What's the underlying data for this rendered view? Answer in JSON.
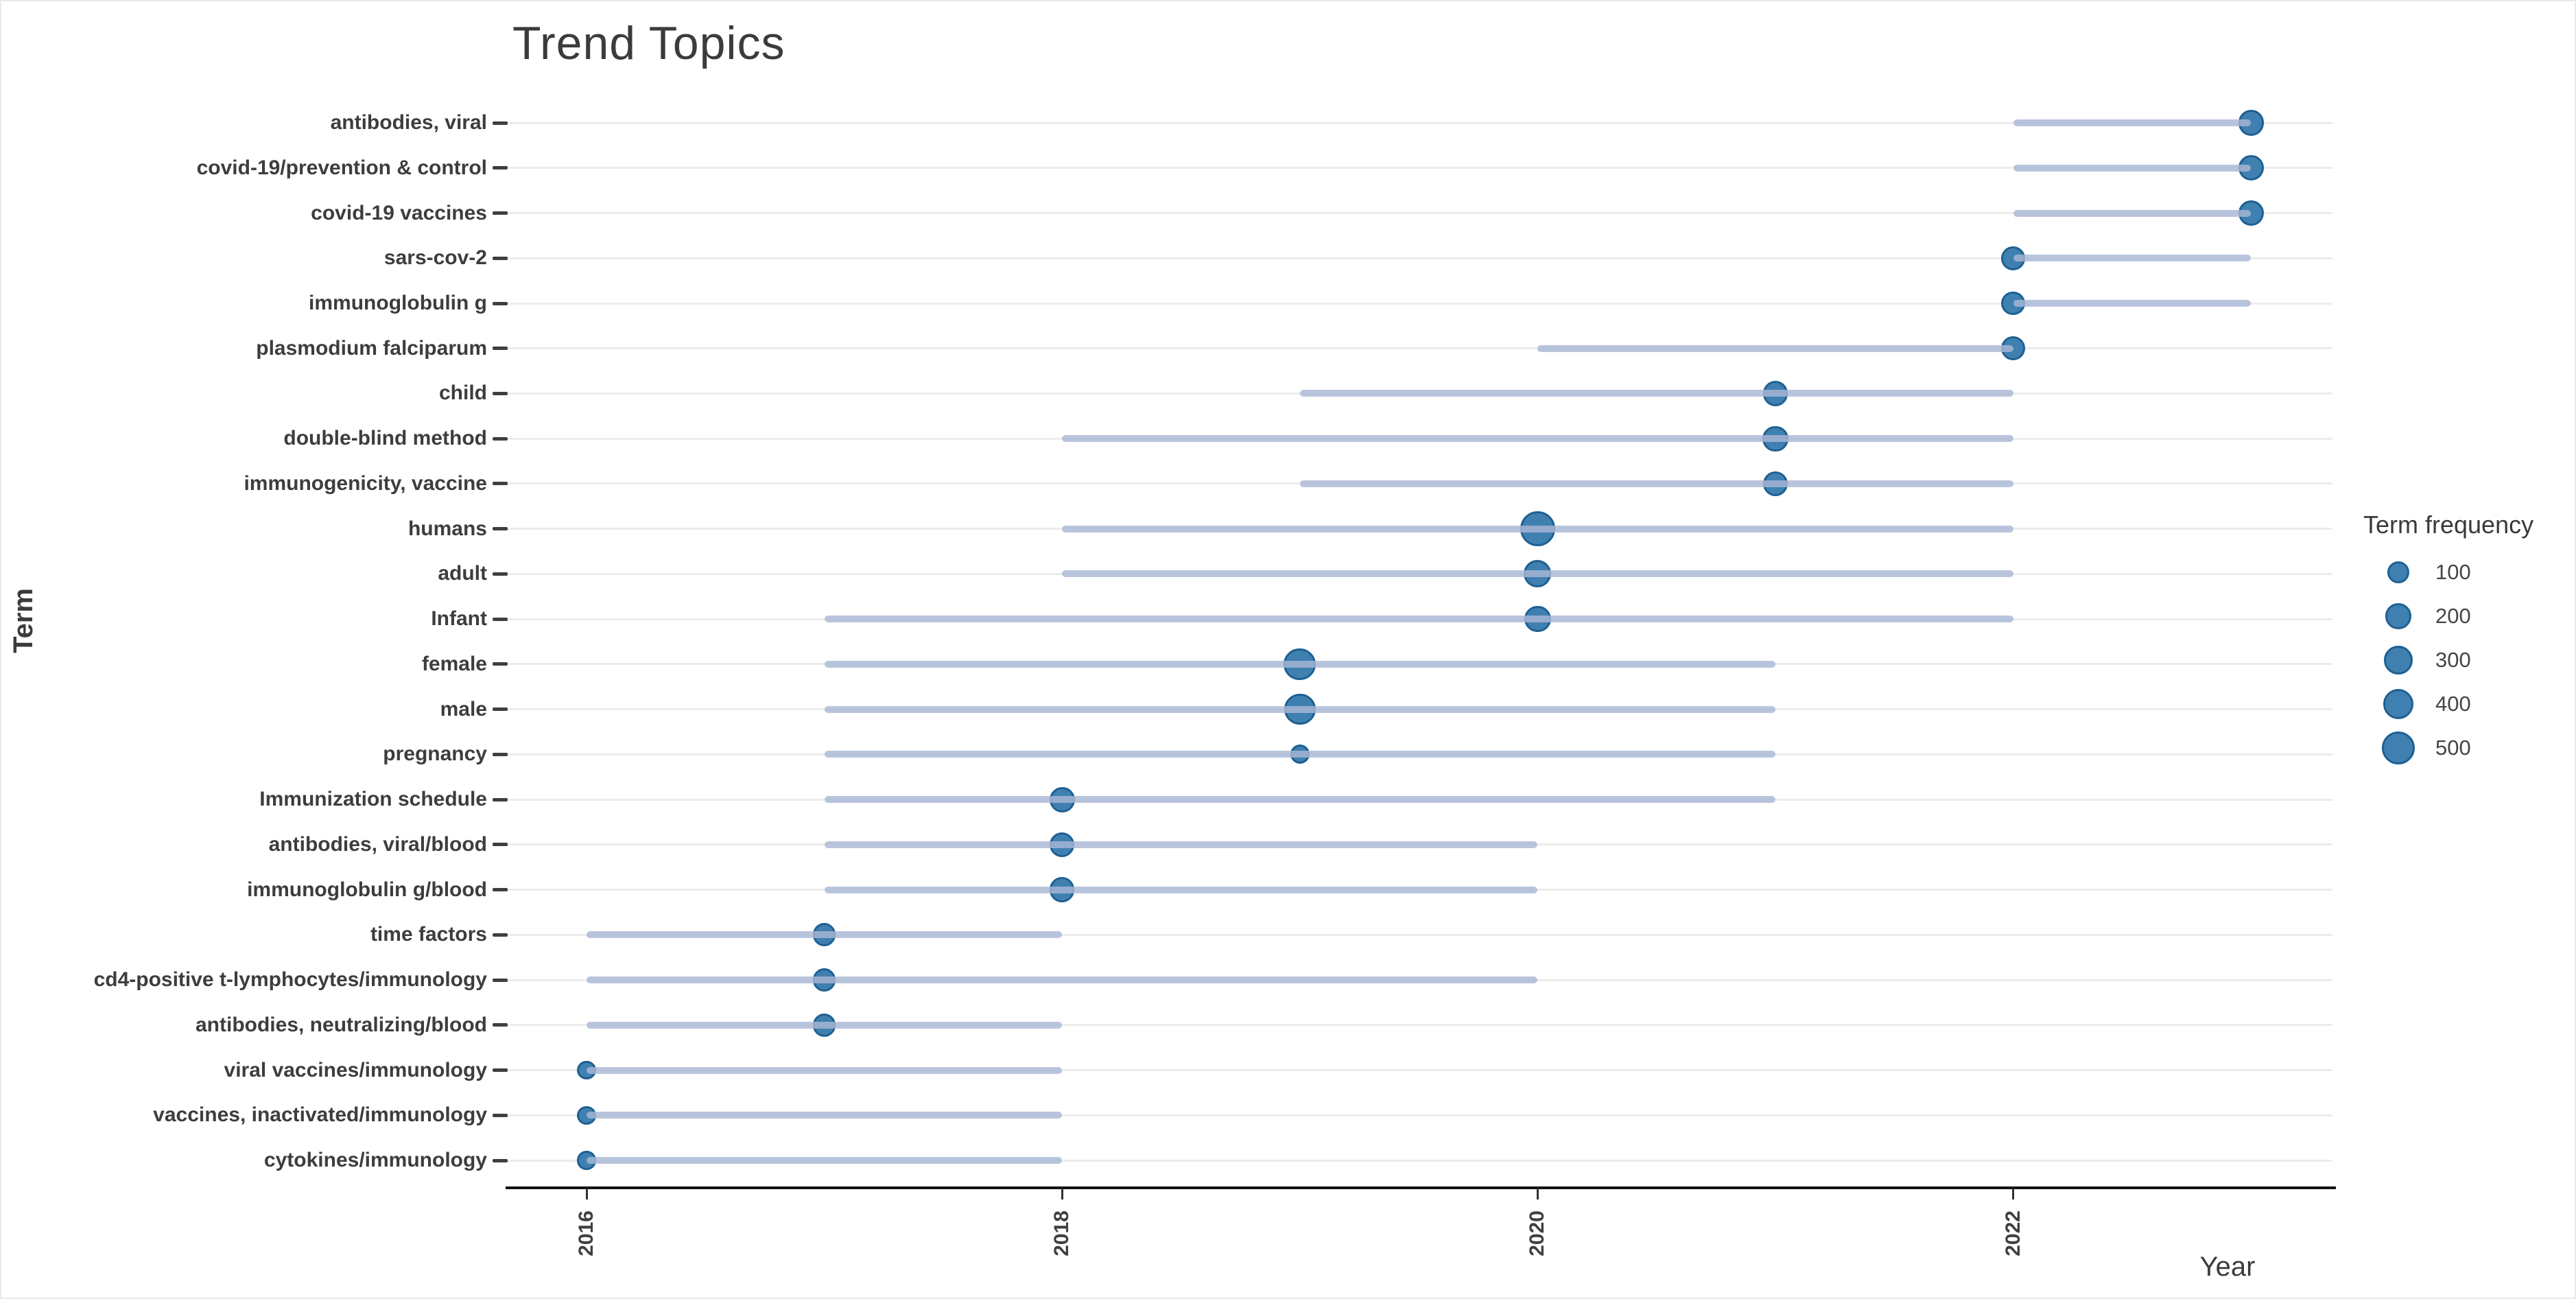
{
  "title": "Trend Topics",
  "x_axis": {
    "label": "Year",
    "ticks": [
      "2016",
      "2018",
      "2020",
      "2022"
    ]
  },
  "y_axis": {
    "label": "Term"
  },
  "legend": {
    "title": "Term frequency",
    "items": [
      {
        "label": "100",
        "value": 100
      },
      {
        "label": "200",
        "value": 200
      },
      {
        "label": "300",
        "value": 300
      },
      {
        "label": "400",
        "value": 400
      },
      {
        "label": "500",
        "value": 500
      }
    ]
  },
  "colors": {
    "bubble_fill": "#4080b0",
    "bubble_stroke": "#1e6092",
    "segment_line": "#a9b7d6",
    "gridline": "#ececec",
    "axis_line": "#141414",
    "text": "#3b3b3b"
  },
  "chart_data": {
    "type": "scatter",
    "subtype": "bubble-timeline",
    "title": "Trend Topics",
    "xlabel": "Year",
    "ylabel": "Term",
    "x_range": [
      2015.7,
      2023.3
    ],
    "x_ticks": [
      2016,
      2018,
      2020,
      2022
    ],
    "grid": "horizontal-only",
    "legend_position": "right",
    "size_legend_title": "Term frequency",
    "size_legend_values": [
      100,
      200,
      300,
      400,
      500
    ],
    "terms": [
      {
        "label": "antibodies, viral",
        "year_start": 2022,
        "year_peak": 2023,
        "year_end": 2023,
        "frequency": 200
      },
      {
        "label": "covid-19/prevention & control",
        "year_start": 2022,
        "year_peak": 2023,
        "year_end": 2023,
        "frequency": 190
      },
      {
        "label": "covid-19 vaccines",
        "year_start": 2022,
        "year_peak": 2023,
        "year_end": 2023,
        "frequency": 190
      },
      {
        "label": "sars-cov-2",
        "year_start": 2022,
        "year_peak": 2022,
        "year_end": 2023,
        "frequency": 150
      },
      {
        "label": "immunoglobulin g",
        "year_start": 2022,
        "year_peak": 2022,
        "year_end": 2023,
        "frequency": 150
      },
      {
        "label": "plasmodium falciparum",
        "year_start": 2020,
        "year_peak": 2022,
        "year_end": 2022,
        "frequency": 150
      },
      {
        "label": "child",
        "year_start": 2019,
        "year_peak": 2021,
        "year_end": 2022,
        "frequency": 190
      },
      {
        "label": "double-blind method",
        "year_start": 2018,
        "year_peak": 2021,
        "year_end": 2022,
        "frequency": 200
      },
      {
        "label": "immunogenicity, vaccine",
        "year_start": 2019,
        "year_peak": 2021,
        "year_end": 2022,
        "frequency": 180
      },
      {
        "label": "humans",
        "year_start": 2018,
        "year_peak": 2020,
        "year_end": 2022,
        "frequency": 600
      },
      {
        "label": "adult",
        "year_start": 2018,
        "year_peak": 2020,
        "year_end": 2022,
        "frequency": 260
      },
      {
        "label": "Infant",
        "year_start": 2017,
        "year_peak": 2020,
        "year_end": 2022,
        "frequency": 230
      },
      {
        "label": "female",
        "year_start": 2017,
        "year_peak": 2019,
        "year_end": 2021,
        "frequency": 460
      },
      {
        "label": "male",
        "year_start": 2017,
        "year_peak": 2019,
        "year_end": 2021,
        "frequency": 420
      },
      {
        "label": "pregnancy",
        "year_start": 2017,
        "year_peak": 2019,
        "year_end": 2021,
        "frequency": 50
      },
      {
        "label": "Immunization schedule",
        "year_start": 2017,
        "year_peak": 2018,
        "year_end": 2021,
        "frequency": 190
      },
      {
        "label": "antibodies, viral/blood",
        "year_start": 2017,
        "year_peak": 2018,
        "year_end": 2020,
        "frequency": 180
      },
      {
        "label": "immunoglobulin g/blood",
        "year_start": 2017,
        "year_peak": 2018,
        "year_end": 2020,
        "frequency": 180
      },
      {
        "label": "time factors",
        "year_start": 2016,
        "year_peak": 2017,
        "year_end": 2018,
        "frequency": 130
      },
      {
        "label": "cd4-positive t-lymphocytes/immunology",
        "year_start": 2016,
        "year_peak": 2017,
        "year_end": 2020,
        "frequency": 130
      },
      {
        "label": "antibodies, neutralizing/blood",
        "year_start": 2016,
        "year_peak": 2017,
        "year_end": 2018,
        "frequency": 130
      },
      {
        "label": "viral vaccines/immunology",
        "year_start": 2016,
        "year_peak": 2016,
        "year_end": 2018,
        "frequency": 40
      },
      {
        "label": "vaccines, inactivated/immunology",
        "year_start": 2016,
        "year_peak": 2016,
        "year_end": 2018,
        "frequency": 40
      },
      {
        "label": "cytokines/immunology",
        "year_start": 2016,
        "year_peak": 2016,
        "year_end": 2018,
        "frequency": 40
      }
    ]
  }
}
